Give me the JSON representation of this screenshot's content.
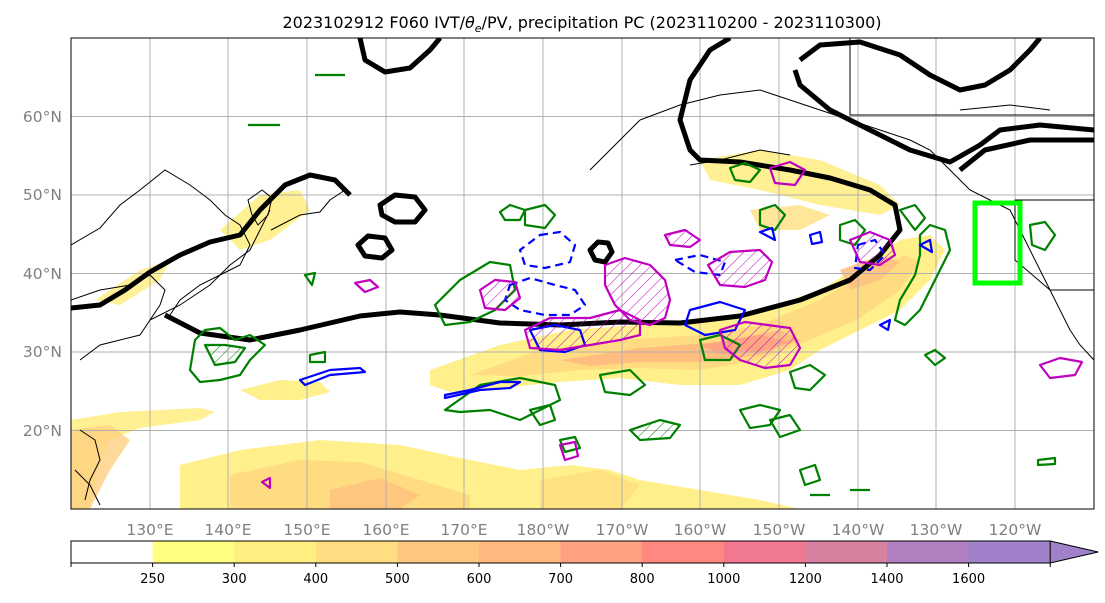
{
  "title": {
    "prefix": "2023102912 F060 IVT/",
    "theta": "θ",
    "theta_sub": "e",
    "suffix": "/PV, precipitation PC (2023110200 - 2023110300)"
  },
  "map": {
    "lat_labels": [
      "60°N",
      "50°N",
      "40°N",
      "30°N",
      "20°N"
    ],
    "lat_values": [
      60,
      50,
      40,
      30,
      20
    ],
    "lon_labels": [
      "130°E",
      "140°E",
      "150°E",
      "160°E",
      "170°E",
      "180°W",
      "170°W",
      "160°W",
      "150°W",
      "140°W",
      "130°W",
      "120°W"
    ],
    "lon_values": [
      130,
      140,
      150,
      160,
      170,
      180,
      190,
      200,
      210,
      220,
      230,
      240
    ],
    "extent": {
      "lon_min": 120,
      "lon_max": 250,
      "lat_min": 10,
      "lat_max": 70
    },
    "gridlines": true,
    "highlight_box": {
      "lon_min": 235,
      "lon_max": 241,
      "lat_min": 39,
      "lat_max": 49,
      "color": "#00ff00"
    }
  },
  "colorbar": {
    "levels": [
      "250",
      "300",
      "400",
      "500",
      "600",
      "700",
      "800",
      "1000",
      "1200",
      "1400",
      "1600"
    ],
    "colors": [
      "#ffffff",
      "#ffff80",
      "#ffee80",
      "#ffdd80",
      "#ffc880",
      "#ffb880",
      "#ffa080",
      "#ff8880",
      "#f07890",
      "#d880a0",
      "#b080c0",
      "#a080c8"
    ],
    "extend": "max"
  },
  "legend_colors": {
    "land_outline": "#000000",
    "theta_e_contour": "#000000",
    "precip_pc_positive": "#008000",
    "pv_solid": "#0000ff",
    "pv_hatched": "#c000c0",
    "highlight_box": "#00ff00"
  }
}
